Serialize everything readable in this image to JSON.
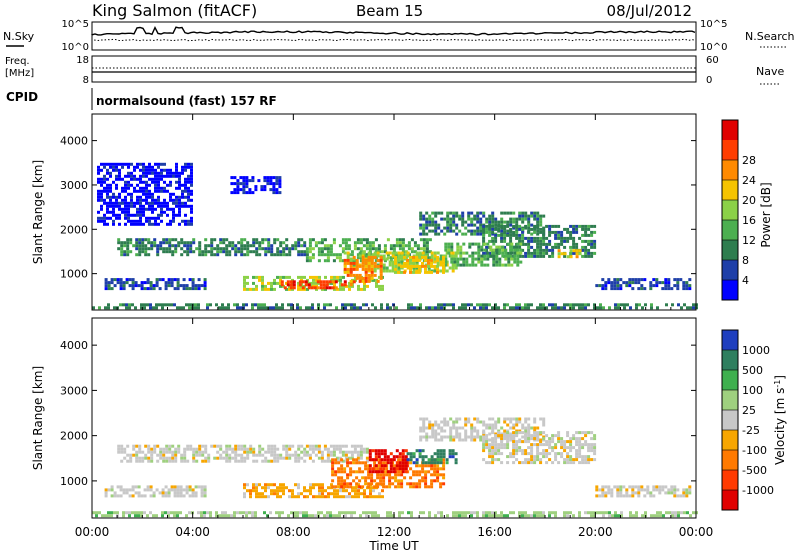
{
  "header": {
    "station": "King Salmon (fitACF)",
    "beam": "Beam 15",
    "date": "08/Jul/2012"
  },
  "noise_panel": {
    "left_label": "N.Sky",
    "right_label": "N.Search",
    "tick_top_left": "10^5",
    "tick_bottom_left": "10^0",
    "tick_top_right": "10^5",
    "tick_bottom_right": "10^0"
  },
  "freq_panel": {
    "left_label_1": "Freq.",
    "left_label_2": "[MHz]",
    "right_label": "Nave",
    "tick_top_left": "18",
    "tick_bottom_left": "8",
    "tick_top_right": "60",
    "tick_bottom_right": "0"
  },
  "cpid": {
    "label": "CPID",
    "program": "normalsound (fast) 157 RF"
  },
  "chart_data": [
    {
      "type": "heatmap",
      "title": "Power",
      "ylabel": "Slant Range [km]",
      "xlabel": "Time UT",
      "ylim": [
        180,
        4600
      ],
      "xlim": [
        "00:00",
        "24:00"
      ],
      "x_ticks": [
        "00:00",
        "04:00",
        "08:00",
        "12:00",
        "16:00",
        "20:00",
        "00:00"
      ],
      "y_ticks": [
        1000,
        2000,
        3000,
        4000
      ],
      "colorbar": {
        "label": "Power [dB]",
        "ticks": [
          "4",
          "8",
          "12",
          "16",
          "20",
          "24",
          "28"
        ],
        "colors": [
          "#0000ff",
          "#1e3fa8",
          "#2e7d4f",
          "#4caf50",
          "#8bd147",
          "#f5c400",
          "#ff8a00",
          "#ff3d00",
          "#e00000"
        ]
      },
      "regions": [
        {
          "t0": 0.0,
          "t1": 24.0,
          "r0": 200,
          "r1": 330,
          "level": 2
        },
        {
          "t0": 1.0,
          "t1": 8.5,
          "r0": 1450,
          "r1": 1800,
          "level": 2
        },
        {
          "t0": 8.5,
          "t1": 13.5,
          "r0": 1300,
          "r1": 1800,
          "level": 3
        },
        {
          "t0": 10.0,
          "t1": 14.5,
          "r0": 1050,
          "r1": 1500,
          "level": 4
        },
        {
          "t0": 6.0,
          "t1": 11.5,
          "r0": 650,
          "r1": 950,
          "level": 4
        },
        {
          "t0": 7.5,
          "t1": 10.5,
          "r0": 650,
          "r1": 850,
          "level": 7
        },
        {
          "t0": 10.0,
          "t1": 11.5,
          "r0": 800,
          "r1": 1400,
          "level": 6
        },
        {
          "t0": 13.0,
          "t1": 18.0,
          "r0": 1900,
          "r1": 2400,
          "level": 2
        },
        {
          "t0": 15.5,
          "t1": 20.0,
          "r0": 1400,
          "r1": 2100,
          "level": 2
        },
        {
          "t0": 14.0,
          "t1": 17.0,
          "r0": 1200,
          "r1": 1700,
          "level": 3
        },
        {
          "t0": 18.5,
          "t1": 19.5,
          "r0": 1350,
          "r1": 1550,
          "level": 5
        },
        {
          "t0": 0.5,
          "t1": 4.5,
          "r0": 650,
          "r1": 900,
          "level": 1
        },
        {
          "t0": 20.0,
          "t1": 23.8,
          "r0": 650,
          "r1": 900,
          "level": 1
        },
        {
          "t0": 0.2,
          "t1": 4.0,
          "r0": 2100,
          "r1": 3500,
          "level": 0
        },
        {
          "t0": 5.5,
          "t1": 7.5,
          "r0": 2800,
          "r1": 3200,
          "level": 0
        },
        {
          "t0": 12.0,
          "t1": 14.0,
          "r0": 1000,
          "r1": 1400,
          "level": 5
        }
      ]
    },
    {
      "type": "heatmap",
      "title": "Velocity",
      "ylabel": "Slant Range [km]",
      "xlabel": "Time UT",
      "ylim": [
        180,
        4600
      ],
      "xlim": [
        "00:00",
        "24:00"
      ],
      "x_ticks": [
        "00:00",
        "04:00",
        "08:00",
        "12:00",
        "16:00",
        "20:00",
        "00:00"
      ],
      "y_ticks": [
        1000,
        2000,
        3000,
        4000
      ],
      "colorbar": {
        "label": "Velocity [m s^-1]",
        "ticks": [
          "1000",
          "500",
          "100",
          "25",
          "-25",
          "-100",
          "-500",
          "-1000"
        ],
        "colors": [
          "#1f3fbf",
          "#2f7f5f",
          "#3fb04f",
          "#9fd07f",
          "#c8c8c8",
          "#f7a600",
          "#ff7a00",
          "#ff3a00",
          "#e00000"
        ]
      },
      "regions": [
        {
          "t0": 1.0,
          "t1": 8.5,
          "r0": 1450,
          "r1": 1800,
          "level": 4
        },
        {
          "t0": 8.5,
          "t1": 11.0,
          "r0": 1450,
          "r1": 1800,
          "level": 4
        },
        {
          "t0": 13.0,
          "t1": 18.0,
          "r0": 1900,
          "r1": 2400,
          "level": 4
        },
        {
          "t0": 15.5,
          "t1": 20.0,
          "r0": 1400,
          "r1": 2100,
          "level": 4
        },
        {
          "t0": 6.0,
          "t1": 11.5,
          "r0": 650,
          "r1": 950,
          "level": 5
        },
        {
          "t0": 9.5,
          "t1": 14.0,
          "r0": 900,
          "r1": 1500,
          "level": 6
        },
        {
          "t0": 11.0,
          "t1": 12.5,
          "r0": 1200,
          "r1": 1700,
          "level": 8
        },
        {
          "t0": 12.5,
          "t1": 14.5,
          "r0": 1400,
          "r1": 1700,
          "level": 1
        },
        {
          "t0": 0.5,
          "t1": 4.5,
          "r0": 650,
          "r1": 900,
          "level": 4
        },
        {
          "t0": 20.0,
          "t1": 23.8,
          "r0": 650,
          "r1": 900,
          "level": 4
        },
        {
          "t0": 0.0,
          "t1": 24.0,
          "r0": 200,
          "r1": 330,
          "level": 3
        }
      ]
    }
  ]
}
